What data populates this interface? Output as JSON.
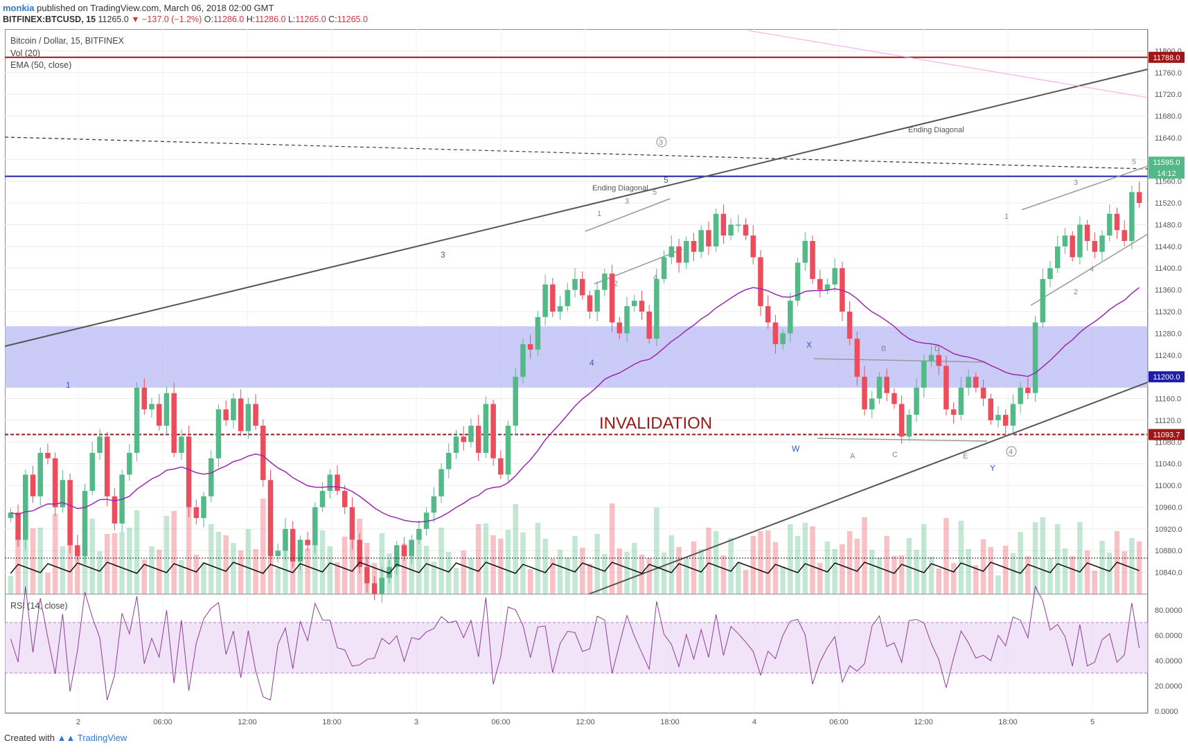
{
  "header": {
    "user": "monkia",
    "published": "published on TradingView.com, March 06, 2018 02:00 GMT",
    "symbol": "BITFINEX:BTCUSD, 15",
    "last": "11265.0",
    "change": "▼ −137.0 (−1.2%)",
    "ohlc": [
      {
        "k": "O:",
        "v": "11286.0"
      },
      {
        "k": "H:",
        "v": "11286.0"
      },
      {
        "k": "L:",
        "v": "11265.0"
      },
      {
        "k": "C:",
        "v": "11265.0"
      }
    ]
  },
  "legend": {
    "title": "Bitcoin / Dollar, 15, BITFINEX",
    "vol": "Vol (20)",
    "ema": "EMA (50, close)",
    "rsi": "RSI (14, close)"
  },
  "footer": {
    "created": "Created with",
    "brand": "TradingView"
  },
  "colors": {
    "up": "#53b987",
    "down": "#eb4d5c",
    "ema": "#9c27b0",
    "zone": "#b9b9f5",
    "invalid": "#a01515",
    "blue_line": "#1e1eaa",
    "trend": "#555555"
  },
  "chart_data": {
    "type": "candlestick",
    "ylim": [
      10800,
      11840
    ],
    "y_ticks": [
      10840,
      10880,
      10920,
      10960,
      11000,
      11040,
      11080,
      11120,
      11160,
      11200,
      11240,
      11280,
      11320,
      11360,
      11400,
      11440,
      11480,
      11520,
      11560,
      11600,
      11640,
      11680,
      11720,
      11760,
      11800
    ],
    "x_ticks": [
      "2",
      "06:00",
      "12:00",
      "18:00",
      "3",
      "06:00",
      "12:00",
      "18:00",
      "4",
      "06:00",
      "12:00",
      "18:00",
      "5"
    ],
    "price_tags": [
      {
        "label": "11788.0",
        "value": 11788,
        "color": "#a01515"
      },
      {
        "label": "11595.0",
        "value": 11595,
        "color": "#53b987"
      },
      {
        "label": "14:12",
        "value": 11575,
        "color": "#53b987"
      },
      {
        "label": "11200.0",
        "value": 11200,
        "color": "#1e1eaa"
      },
      {
        "label": "11093.7",
        "value": 11093.7,
        "color": "#a01515"
      }
    ],
    "horizontal_levels": [
      {
        "value": 11788,
        "style": "solid",
        "color": "#a01515"
      },
      {
        "value": 11569,
        "style": "solid",
        "color": "#1e1eaa"
      },
      {
        "value": 11093.7,
        "style": "dashed",
        "color": "#a01515"
      }
    ],
    "support_zone": [
      11180,
      11293
    ],
    "rsi_ticks": [
      "80.0000",
      "60.0000",
      "40.0000",
      "20.0000",
      "0.0000"
    ],
    "rsi_band": [
      30,
      70
    ],
    "annotations": {
      "invalidation": "INVALIDATION",
      "ending_diagonal_1": "Ending Diagonal",
      "ending_diagonal_2": "Ending Diagonal",
      "wave_3_circled": "3",
      "wave_4_circled": "4",
      "blue_labels": [
        "1",
        "3",
        "4",
        "5",
        "W",
        "X",
        "Y"
      ],
      "grey_labels": [
        "1",
        "2",
        "3",
        "4",
        "5",
        "A",
        "B",
        "C",
        "D",
        "E",
        "1",
        "2",
        "3",
        "4",
        "5"
      ]
    },
    "closes": [
      10950,
      10900,
      11020,
      10980,
      11060,
      11050,
      10960,
      11010,
      10890,
      10870,
      10990,
      11060,
      11090,
      10980,
      10930,
      11020,
      11060,
      11180,
      11140,
      11150,
      11110,
      11170,
      11060,
      11090,
      10960,
      10940,
      10980,
      11050,
      11140,
      11120,
      11160,
      11100,
      11150,
      11110,
      11010,
      10870,
      10880,
      10920,
      10860,
      10900,
      10890,
      10960,
      10990,
      11020,
      10990,
      10960,
      10900,
      10850,
      10820,
      10800,
      10830,
      10850,
      10890,
      10870,
      10900,
      10920,
      10950,
      10980,
      11030,
      11060,
      11090,
      11080,
      11110,
      11060,
      11150,
      11050,
      11020,
      11110,
      11200,
      11260,
      11250,
      11310,
      11370,
      11320,
      11330,
      11360,
      11380,
      11350,
      11320,
      11360,
      11390,
      11300,
      11280,
      11330,
      11340,
      11320,
      11270,
      11380,
      11420,
      11440,
      11410,
      11450,
      11430,
      11470,
      11440,
      11500,
      11460,
      11480,
      11480,
      11460,
      11420,
      11330,
      11300,
      11260,
      11280,
      11340,
      11410,
      11450,
      11380,
      11360,
      11370,
      11400,
      11320,
      11270,
      11200,
      11140,
      11160,
      11200,
      11170,
      11150,
      11090,
      11130,
      11180,
      11230,
      11240,
      11220,
      11140,
      11130,
      11180,
      11200,
      11180,
      11160,
      11120,
      11130,
      11110,
      11150,
      11180,
      11170,
      11300,
      11380,
      11400,
      11440,
      11460,
      11420,
      11480,
      11450,
      11430,
      11460,
      11500,
      11470,
      11450,
      11540,
      11520
    ]
  }
}
